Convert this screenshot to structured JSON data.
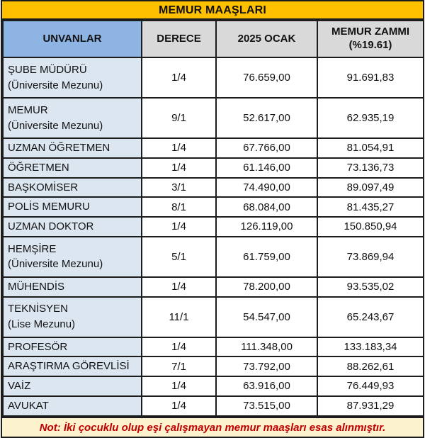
{
  "title": "MEMUR MAAŞLARI",
  "header": {
    "unvanlar": "UNVANLAR",
    "derece": "DERECE",
    "ocak": "2025 OCAK",
    "zam_line1": "MEMUR ZAMMI",
    "zam_line2": "(%19.61)"
  },
  "rows": [
    {
      "name": "ŞUBE MÜDÜRÜ",
      "sub": "(Üniversite Mezunu)",
      "derece": "1/4",
      "ocak": "76.659,00",
      "zam": "91.691,83"
    },
    {
      "name": "MEMUR",
      "sub": "(Üniversite Mezunu)",
      "derece": "9/1",
      "ocak": "52.617,00",
      "zam": "62.935,19"
    },
    {
      "name": "UZMAN ÖĞRETMEN",
      "derece": "1/4",
      "ocak": "67.766,00",
      "zam": "81.054,91"
    },
    {
      "name": "ÖĞRETMEN",
      "derece": "1/4",
      "ocak": "61.146,00",
      "zam": "73.136,73"
    },
    {
      "name": "BAŞKOMİSER",
      "derece": "3/1",
      "ocak": "74.490,00",
      "zam": "89.097,49"
    },
    {
      "name": "POLİS MEMURU",
      "derece": "8/1",
      "ocak": "68.084,00",
      "zam": "81.435,27"
    },
    {
      "name": "UZMAN DOKTOR",
      "derece": "1/4",
      "ocak": "126.119,00",
      "zam": "150.850,94"
    },
    {
      "name": "HEMŞİRE",
      "sub": "(Üniversite Mezunu)",
      "derece": "5/1",
      "ocak": "61.759,00",
      "zam": "73.869,94"
    },
    {
      "name": "MÜHENDİS",
      "derece": "1/4",
      "ocak": "78.200,00",
      "zam": "93.535,02"
    },
    {
      "name": "TEKNİSYEN",
      "sub": "(Lise Mezunu)",
      "derece": "11/1",
      "ocak": "54.547,00",
      "zam": "65.243,67"
    },
    {
      "name": "PROFESÖR",
      "derece": "1/4",
      "ocak": "111.348,00",
      "zam": "133.183,34"
    },
    {
      "name": "ARAŞTIRMA GÖREVLİSİ",
      "derece": "7/1",
      "ocak": "73.792,00",
      "zam": "88.262,61"
    },
    {
      "name": "VAİZ",
      "derece": "1/4",
      "ocak": "63.916,00",
      "zam": "76.449,93"
    },
    {
      "name": "AVUKAT",
      "derece": "1/4",
      "ocak": "73.515,00",
      "zam": "87.931,29"
    }
  ],
  "note": "Not: İki çocuklu olup eşi çalışmayan memur maaşları esas alınmıştır.",
  "colors": {
    "title_bg": "#FFC000",
    "header_blue": "#8DB4E2",
    "header_gray": "#D9D9D9",
    "label_bg": "#DCE6F1",
    "note_bg": "#FDF2CE",
    "note_red": "#C00000"
  },
  "chart_data": {
    "type": "table",
    "title": "MEMUR MAAŞLARI",
    "columns": [
      "UNVANLAR",
      "DERECE",
      "2025 OCAK",
      "MEMUR ZAMMI (%19.61)"
    ],
    "raise_percent": 19.61,
    "rows": [
      [
        "ŞUBE MÜDÜRÜ (Üniversite Mezunu)",
        "1/4",
        76659.0,
        91691.83
      ],
      [
        "MEMUR (Üniversite Mezunu)",
        "9/1",
        52617.0,
        62935.19
      ],
      [
        "UZMAN ÖĞRETMEN",
        "1/4",
        67766.0,
        81054.91
      ],
      [
        "ÖĞRETMEN",
        "1/4",
        61146.0,
        73136.73
      ],
      [
        "BAŞKOMİSER",
        "3/1",
        74490.0,
        89097.49
      ],
      [
        "POLİS MEMURU",
        "8/1",
        68084.0,
        81435.27
      ],
      [
        "UZMAN DOKTOR",
        "1/4",
        126119.0,
        150850.94
      ],
      [
        "HEMŞİRE (Üniversite Mezunu)",
        "5/1",
        61759.0,
        73869.94
      ],
      [
        "MÜHENDİS",
        "1/4",
        78200.0,
        93535.02
      ],
      [
        "TEKNİSYEN (Lise Mezunu)",
        "11/1",
        54547.0,
        65243.67
      ],
      [
        "PROFESÖR",
        "1/4",
        111348.0,
        133183.34
      ],
      [
        "ARAŞTIRMA GÖREVLİSİ",
        "7/1",
        73792.0,
        88262.61
      ],
      [
        "VAİZ",
        "1/4",
        63916.0,
        76449.93
      ],
      [
        "AVUKAT",
        "1/4",
        73515.0,
        87931.29
      ]
    ],
    "note": "Not: İki çocuklu olup eşi çalışmayan memur maaşları esas alınmıştır."
  }
}
